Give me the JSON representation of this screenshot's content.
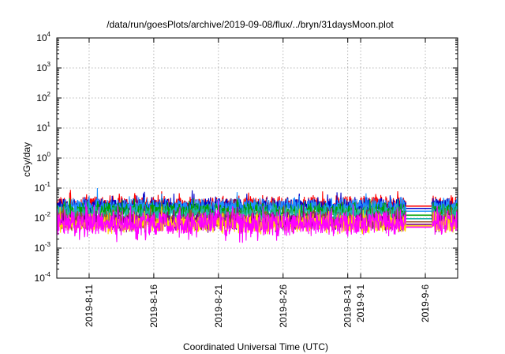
{
  "chart_data": {
    "type": "line",
    "title": "/data/run/goesPlots/archive/2019-09-08/flux/../bryn/31daysMoon.plot",
    "xlabel": "Coordinated Universal Time (UTC)",
    "ylabel": "cGy/day",
    "yscale": "log",
    "ylim": [
      0.0001,
      10000
    ],
    "xlim": [
      "2019-08-08T12:00",
      "2019-09-08T12:00"
    ],
    "grid": true,
    "y_ticks": [
      {
        "base": "10",
        "exp": "4"
      },
      {
        "base": "10",
        "exp": "3"
      },
      {
        "base": "10",
        "exp": "2"
      },
      {
        "base": "10",
        "exp": "1"
      },
      {
        "base": "10",
        "exp": "0"
      },
      {
        "base": "10",
        "exp": "-1"
      },
      {
        "base": "10",
        "exp": "-2"
      },
      {
        "base": "10",
        "exp": "-3"
      },
      {
        "base": "10",
        "exp": "-4"
      }
    ],
    "x_ticks": [
      "2019-8-11",
      "2019-8-16",
      "2019-8-21",
      "2019-8-26",
      "2019-8-31",
      "2019-9-1",
      "2019-9-6"
    ],
    "x_tick_dates": [
      "2019-08-11",
      "2019-08-16",
      "2019-08-21",
      "2019-08-26",
      "2019-08-31",
      "2019-09-01",
      "2019-09-06"
    ],
    "data_gap": [
      "2019-09-04T12:00",
      "2019-09-06T12:00"
    ],
    "series": [
      {
        "color": "#ff0000",
        "base": 0.028,
        "spread": 0.2,
        "spike": 0.35
      },
      {
        "color": "#0000c8",
        "base": 0.026,
        "spread": 0.18,
        "spike": 0.3
      },
      {
        "color": "#1e90ff",
        "base": 0.024,
        "spread": 0.2,
        "spike": 0.35
      },
      {
        "color": "#00a000",
        "base": 0.017,
        "spread": 0.2,
        "spike": 0.25
      },
      {
        "color": "#20b2aa",
        "base": 0.013,
        "spread": 0.22,
        "spike": 0.25
      },
      {
        "color": "#a0522d",
        "base": 0.0085,
        "spread": 0.25,
        "spike": 0.3
      },
      {
        "color": "#800080",
        "base": 0.0075,
        "spread": 0.25,
        "spike": 0.3
      },
      {
        "color": "#ffd700",
        "base": 0.0065,
        "spread": 0.25,
        "spike": 0.25
      },
      {
        "color": "#ff00ff",
        "base": 0.0068,
        "spread": 0.35,
        "spike": 0.4
      }
    ],
    "gap_levels": [
      0.025,
      0.021,
      0.017,
      0.0125,
      0.0095,
      0.0075,
      0.0062,
      0.0055,
      0.005
    ]
  }
}
